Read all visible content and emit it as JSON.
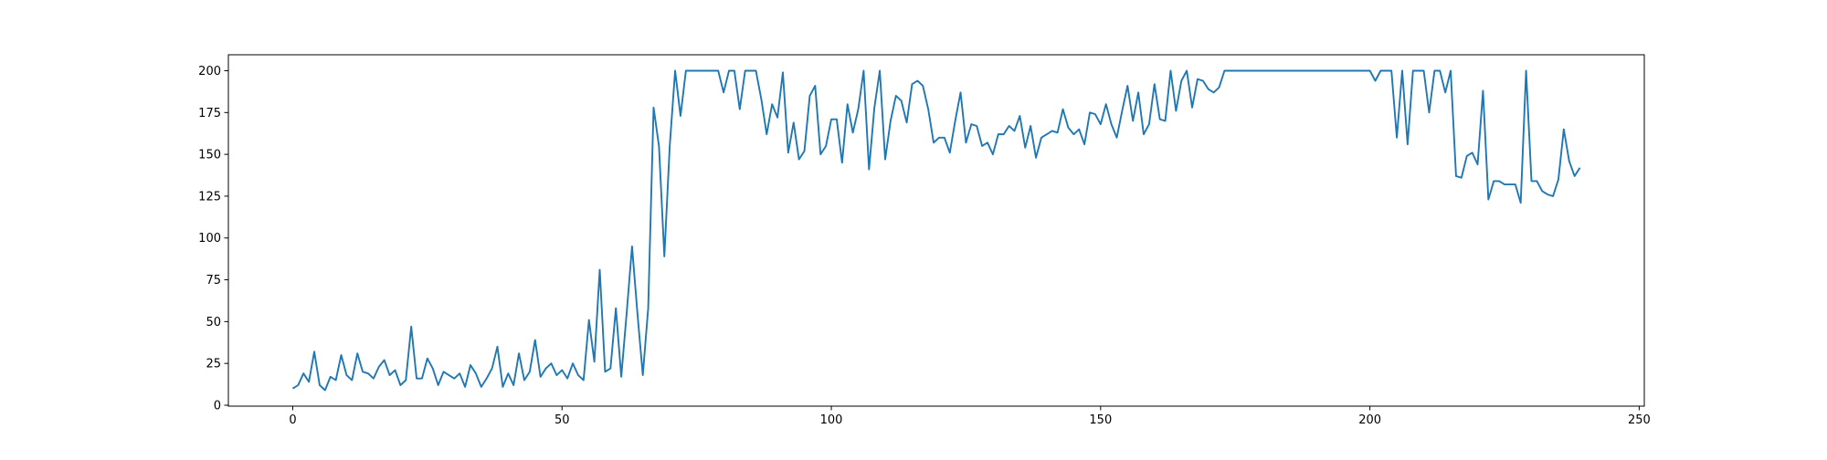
{
  "chart_data": {
    "type": "line",
    "x": [
      0,
      1,
      2,
      3,
      4,
      5,
      6,
      7,
      8,
      9,
      10,
      11,
      12,
      13,
      14,
      15,
      16,
      17,
      18,
      19,
      20,
      21,
      22,
      23,
      24,
      25,
      26,
      27,
      28,
      29,
      30,
      31,
      32,
      33,
      34,
      35,
      36,
      37,
      38,
      39,
      40,
      41,
      42,
      43,
      44,
      45,
      46,
      47,
      48,
      49,
      50,
      51,
      52,
      53,
      54,
      55,
      56,
      57,
      58,
      59,
      60,
      61,
      62,
      63,
      64,
      65,
      66,
      67,
      68,
      69,
      70,
      71,
      72,
      73,
      74,
      75,
      76,
      77,
      78,
      79,
      80,
      81,
      82,
      83,
      84,
      85,
      86,
      87,
      88,
      89,
      90,
      91,
      92,
      93,
      94,
      95,
      96,
      97,
      98,
      99,
      100,
      101,
      102,
      103,
      104,
      105,
      106,
      107,
      108,
      109,
      110,
      111,
      112,
      113,
      114,
      115,
      116,
      117,
      118,
      119,
      120,
      121,
      122,
      123,
      124,
      125,
      126,
      127,
      128,
      129,
      130,
      131,
      132,
      133,
      134,
      135,
      136,
      137,
      138,
      139,
      140,
      141,
      142,
      143,
      144,
      145,
      146,
      147,
      148,
      149,
      150,
      151,
      152,
      153,
      154,
      155,
      156,
      157,
      158,
      159,
      160,
      161,
      162,
      163,
      164,
      165,
      166,
      167,
      168,
      169,
      170,
      171,
      172,
      173,
      174,
      175,
      176,
      177,
      178,
      179,
      180,
      181,
      182,
      183,
      184,
      185,
      186,
      187,
      188,
      189,
      190,
      191,
      192,
      193,
      194,
      195,
      196,
      197,
      198,
      199,
      200,
      201,
      202,
      203,
      204,
      205,
      206,
      207,
      208,
      209,
      210,
      211,
      212,
      213,
      214,
      215,
      216,
      217,
      218,
      219,
      220,
      221,
      222,
      223,
      224,
      225,
      226,
      227,
      228,
      229,
      230,
      231,
      232,
      233,
      234,
      235,
      236,
      237,
      238,
      239
    ],
    "series": [
      {
        "color": "#1f77b4",
        "values": [
          10,
          12,
          19,
          14,
          32,
          12,
          9,
          17,
          15,
          30,
          18,
          15,
          31,
          20,
          19,
          16,
          23,
          27,
          18,
          21,
          12,
          15,
          47,
          16,
          16,
          28,
          22,
          12,
          20,
          18,
          16,
          19,
          11,
          24,
          19,
          11,
          16,
          22,
          35,
          11,
          19,
          12,
          31,
          15,
          20,
          39,
          17,
          22,
          25,
          18,
          21,
          16,
          25,
          18,
          15,
          51,
          26,
          81,
          20,
          22,
          58,
          17,
          55,
          95,
          55,
          18,
          58,
          178,
          155,
          89,
          155,
          200,
          173,
          200,
          200,
          200,
          200,
          200,
          200,
          200,
          187,
          200,
          200,
          177,
          200,
          200,
          200,
          183,
          162,
          180,
          172,
          199,
          151,
          169,
          147,
          152,
          185,
          191,
          150,
          155,
          171,
          171,
          145,
          180,
          163,
          177,
          200,
          141,
          178,
          200,
          147,
          170,
          185,
          182,
          169,
          192,
          194,
          191,
          177,
          157,
          160,
          160,
          151,
          170,
          187,
          157,
          168,
          167,
          155,
          157,
          150,
          162,
          162,
          167,
          164,
          173,
          154,
          167,
          148,
          160,
          162,
          164,
          163,
          177,
          166,
          162,
          165,
          156,
          175,
          174,
          168,
          180,
          168,
          160,
          176,
          191,
          170,
          187,
          162,
          168,
          192,
          171,
          170,
          200,
          176,
          194,
          200,
          178,
          195,
          194,
          189,
          187,
          190,
          200,
          200,
          200,
          200,
          200,
          200,
          200,
          200,
          200,
          200,
          200,
          200,
          200,
          200,
          200,
          200,
          200,
          200,
          200,
          200,
          200,
          200,
          200,
          200,
          200,
          200,
          200,
          200,
          194,
          200,
          200,
          200,
          160,
          200,
          156,
          200,
          200,
          200,
          175,
          200,
          200,
          187,
          200,
          137,
          136,
          149,
          151,
          144,
          188,
          123,
          134,
          134,
          132,
          132,
          132,
          121,
          200,
          134,
          134,
          128,
          126,
          125,
          135,
          165,
          146,
          137,
          142
        ]
      }
    ],
    "xlim": [
      -11.95,
      250.95
    ],
    "xticks": [
      0,
      50,
      100,
      150,
      200,
      250
    ],
    "ylim": [
      -0.55,
      209.55
    ],
    "yticks": [
      0,
      25,
      50,
      75,
      100,
      125,
      150,
      175,
      200
    ]
  }
}
